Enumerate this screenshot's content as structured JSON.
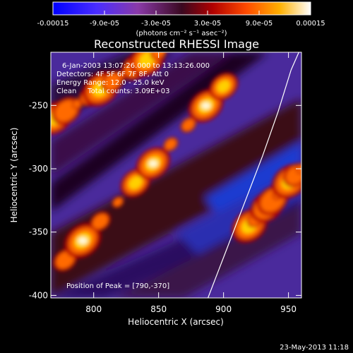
{
  "chart_data": {
    "type": "heatmap",
    "title": "Reconstructed RHESSI Image",
    "xlabel": "Heliocentric X (arcsec)",
    "ylabel": "Heliocentric Y (arcsec)",
    "xlim": [
      767,
      960
    ],
    "ylim": [
      -402,
      -208
    ],
    "x_ticks": [
      800,
      850,
      900,
      950
    ],
    "y_ticks": [
      -250,
      -300,
      -350,
      -400
    ],
    "colorbar": {
      "ticks": [
        "-0.00015",
        "-9.0e-05",
        "-3.0e-05",
        "3.0e-05",
        "9.0e-05",
        "0.00015"
      ],
      "range": [
        -0.00015,
        0.00015
      ],
      "unit_label": "(photons cm⁻² s⁻¹ asec⁻²)"
    },
    "annotations": [
      "6-Jan-2003 13:07:26.000 to 13:13:26.000",
      "Detectors: 4F 5F 6F 7F 8F, Att 0",
      "Energy Range: 12.0 - 25.0 keV",
      "Clean     Total counts: 3.09E+03",
      "Position of Peak = [790,-370]"
    ],
    "peak_position": [
      790,
      -370
    ],
    "limb_curve": [
      [
        888,
        -402
      ],
      [
        900,
        -370
      ],
      [
        915,
        -330
      ],
      [
        930,
        -290
      ],
      [
        942,
        -255
      ],
      [
        952,
        -222
      ],
      [
        958,
        -208
      ]
    ],
    "bright_ridges": [
      {
        "from": [
          778,
          -372
        ],
        "to": [
          900,
          -235
        ],
        "peak": 1.0
      },
      {
        "from": [
          770,
          -260
        ],
        "to": [
          850,
          -208
        ],
        "peak": 0.85
      },
      {
        "from": [
          920,
          -345
        ],
        "to": [
          960,
          -300
        ],
        "peak": 0.8
      }
    ]
  },
  "footer": {
    "timestamp": "23-May-2013 11:18"
  }
}
